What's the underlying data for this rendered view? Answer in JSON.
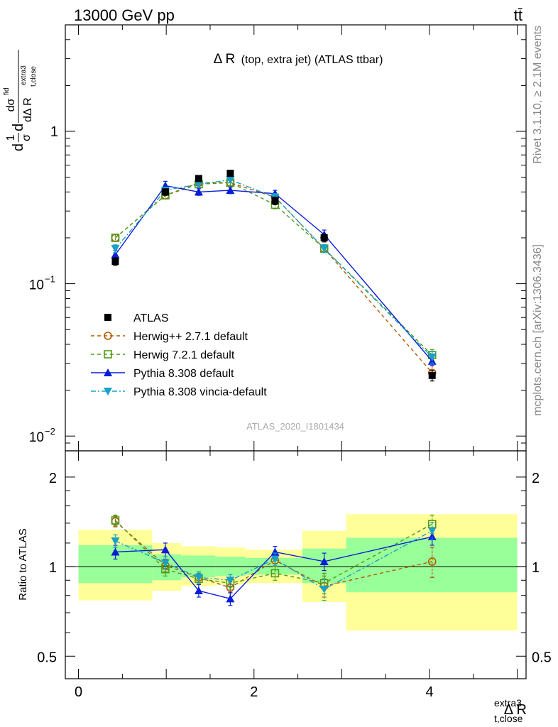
{
  "header": {
    "left": "13000 GeV pp",
    "right": "tt̄",
    "side_rivet": "Rivet 3.1.10, ≥ 2.1M events",
    "side_mcplots": "mcplots.cern.ch [arXiv:1306.3436]"
  },
  "chart_data": [
    {
      "type": "line",
      "title_main": "Δ R",
      "title_sub": "(top, extra jet) (ATLAS ttbar)",
      "watermark": "ATLAS_2020_I1801434",
      "yscale": "log",
      "ylim": [
        0.008,
        5
      ],
      "xlim": [
        -0.15,
        5.1
      ],
      "ylabel_parts": {
        "d1": "d",
        "frac_num": "1",
        "sigma": "σ",
        "d2": "d",
        "numer": "dσ",
        "numer_sup": "fid",
        "denom": "dΔ R",
        "denom_sub": "t,close",
        "denom_sup": "extra3"
      },
      "yticks": [
        {
          "value": 1,
          "label": "1"
        },
        {
          "value": 0.1,
          "base": "10",
          "exp": "−1"
        },
        {
          "value": 0.01,
          "base": "10",
          "exp": "−2"
        }
      ],
      "legend_position": "bottom-left",
      "x": [
        0.42,
        0.99,
        1.37,
        1.73,
        2.24,
        2.8,
        4.03
      ],
      "series": [
        {
          "name": "ATLAS",
          "color": "#000000",
          "marker": "square-filled",
          "line": "none",
          "values": [
            0.14,
            0.4,
            0.49,
            0.53,
            0.35,
            0.2,
            0.025
          ],
          "errors": [
            0.008,
            0.02,
            0.02,
            0.02,
            0.02,
            0.012,
            0.002
          ]
        },
        {
          "name": "Herwig++ 2.7.1 default",
          "color": "#b35900",
          "marker": "circle-open",
          "line": "dash",
          "values": [
            0.2,
            0.38,
            0.46,
            0.46,
            0.37,
            0.17,
            0.026
          ],
          "errors": [
            0.01,
            0.02,
            0.02,
            0.02,
            0.02,
            0.01,
            0.003
          ]
        },
        {
          "name": "Herwig 7.2.1 default",
          "color": "#4f9a1a",
          "marker": "square-open",
          "line": "dash",
          "values": [
            0.2,
            0.38,
            0.45,
            0.46,
            0.33,
            0.17,
            0.034
          ],
          "errors": [
            0.01,
            0.02,
            0.02,
            0.02,
            0.02,
            0.01,
            0.003
          ]
        },
        {
          "name": "Pythia 8.308 default",
          "color": "#0a1ed8",
          "marker": "triangle-up",
          "line": "solid",
          "values": [
            0.155,
            0.44,
            0.4,
            0.41,
            0.39,
            0.21,
            0.031
          ],
          "errors": [
            0.01,
            0.03,
            0.02,
            0.02,
            0.02,
            0.015,
            0.002
          ]
        },
        {
          "name": "Pythia 8.308 vincia-default",
          "color": "#1aa0c8",
          "marker": "triangle-down",
          "line": "dashdot",
          "values": [
            0.17,
            0.41,
            0.45,
            0.48,
            0.37,
            0.17,
            0.033
          ],
          "errors": [
            0.01,
            0.02,
            0.02,
            0.02,
            0.02,
            0.01,
            0.003
          ]
        }
      ]
    },
    {
      "type": "line",
      "ylabel": "Ratio to ATLAS",
      "xlabel_main": "Δ R",
      "xlabel_sub": "t,close",
      "xlabel_sup": "extra3",
      "yscale": "log",
      "ylim": [
        0.42,
        2.45
      ],
      "xlim": [
        -0.15,
        5.1
      ],
      "yticks": [
        {
          "value": 0.5,
          "label": "0.5"
        },
        {
          "value": 1,
          "label": "1"
        },
        {
          "value": 2,
          "label": "2"
        }
      ],
      "xticks": [
        {
          "value": 0,
          "label": "0"
        },
        {
          "value": 2,
          "label": "2"
        },
        {
          "value": 4,
          "label": "4"
        }
      ],
      "bands": {
        "edges": [
          0,
          0.84,
          1.17,
          1.56,
          1.9,
          2.55,
          3.05,
          5.0
        ],
        "inner": [
          [
            0.88,
            1.18
          ],
          [
            0.9,
            1.1
          ],
          [
            0.92,
            1.09
          ],
          [
            0.93,
            1.08
          ],
          [
            0.94,
            1.07
          ],
          [
            0.88,
            1.15
          ],
          [
            0.82,
            1.25
          ]
        ],
        "outer": [
          [
            0.77,
            1.33
          ],
          [
            0.83,
            1.2
          ],
          [
            0.86,
            1.17
          ],
          [
            0.87,
            1.16
          ],
          [
            0.88,
            1.14
          ],
          [
            0.76,
            1.32
          ],
          [
            0.61,
            1.5
          ]
        ],
        "inner_color": "#99ff99",
        "outer_color": "#ffff99"
      },
      "x": [
        0.42,
        0.99,
        1.37,
        1.73,
        2.24,
        2.8,
        4.03
      ],
      "series": [
        {
          "name": "Herwig++ 2.7.1 default",
          "color": "#b35900",
          "marker": "circle-open",
          "line": "dash",
          "values": [
            1.42,
            1.01,
            0.92,
            0.85,
            1.05,
            0.86,
            1.04
          ],
          "errors": [
            0.06,
            0.05,
            0.04,
            0.04,
            0.05,
            0.07,
            0.12
          ]
        },
        {
          "name": "Herwig 7.2.1 default",
          "color": "#4f9a1a",
          "marker": "square-open",
          "line": "dash",
          "values": [
            1.43,
            0.98,
            0.91,
            0.88,
            0.95,
            0.88,
            1.39
          ],
          "errors": [
            0.06,
            0.05,
            0.04,
            0.04,
            0.05,
            0.07,
            0.1
          ]
        },
        {
          "name": "Pythia 8.308 default",
          "color": "#0a1ed8",
          "marker": "triangle-up",
          "line": "solid",
          "values": [
            1.12,
            1.14,
            0.83,
            0.78,
            1.12,
            1.04,
            1.26
          ],
          "errors": [
            0.06,
            0.06,
            0.04,
            0.04,
            0.05,
            0.07,
            0.08
          ]
        },
        {
          "name": "Pythia 8.308 vincia-default",
          "color": "#1aa0c8",
          "marker": "triangle-down",
          "line": "dashdot",
          "values": [
            1.22,
            1.03,
            0.92,
            0.9,
            1.06,
            0.84,
            1.32
          ],
          "errors": [
            0.06,
            0.05,
            0.04,
            0.04,
            0.05,
            0.07,
            0.09
          ]
        }
      ]
    }
  ]
}
